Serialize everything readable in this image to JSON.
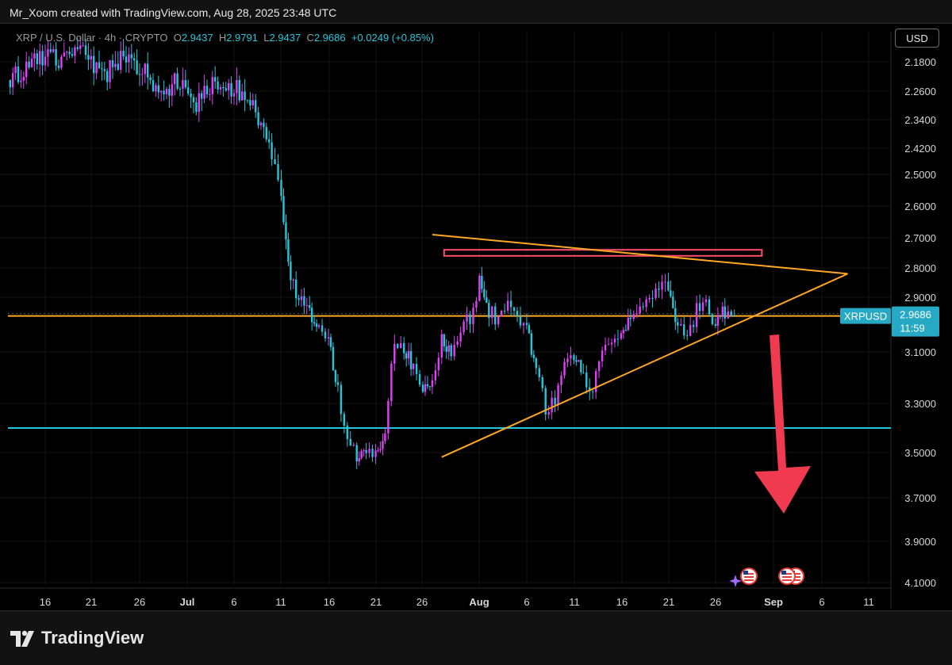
{
  "header": {
    "attribution": "Mr_Xoom created with TradingView.com, Aug 28, 2025 23:48 UTC"
  },
  "legend": {
    "symbol": "XRP / U.S. Dollar · 4h · CRYPTO",
    "o_label": "O",
    "o_value": "2.9437",
    "h_label": "H",
    "h_value": "2.9791",
    "l_label": "L",
    "l_value": "2.9437",
    "c_label": "C",
    "c_value": "2.9686",
    "change": "+0.0249 (+0.85%)"
  },
  "currency_button": "USD",
  "price_tag": {
    "symbol": "XRPUSD",
    "price": "2.9686",
    "countdown": "11:59"
  },
  "brand": "TradingView",
  "icons": [
    "us-flag-icon",
    "sparkle-icon",
    "down-arrow-icon",
    "tradingview-logo-icon"
  ],
  "colors": {
    "up": "#e040fb",
    "down": "#26c6da",
    "trendline": "#ffa726",
    "resistance_box": "#ff4d6a",
    "support_line": "#26c6da",
    "arrow": "#f03a4f"
  },
  "chart_data": {
    "type": "candlestick",
    "y_axis": {
      "orientation": "inverted",
      "tick_labels": [
        "2.1800",
        "2.2600",
        "2.3400",
        "2.4200",
        "2.5000",
        "2.6000",
        "2.7000",
        "2.8000",
        "2.9000",
        "3.1000",
        "3.3000",
        "3.5000",
        "3.7000",
        "3.9000",
        "4.1000"
      ]
    },
    "x_axis": {
      "tick_labels": [
        "16",
        "21",
        "26",
        "Jul",
        "6",
        "11",
        "16",
        "21",
        "26",
        "Aug",
        "6",
        "11",
        "16",
        "21",
        "26",
        "Sep",
        "6",
        "11"
      ]
    },
    "current_price": 2.9686,
    "series": [
      {
        "type": "close",
        "x": [
          "Jun 12",
          "Jun 14",
          "Jun 16",
          "Jun 18",
          "Jun 20",
          "Jun 22",
          "Jun 24",
          "Jun 26",
          "Jun 28",
          "Jun 30",
          "Jul 2",
          "Jul 4",
          "Jul 6",
          "Jul 8",
          "Jul 10",
          "Jul 11",
          "Jul 12",
          "Jul 14",
          "Jul 15",
          "Jul 16",
          "Jul 17",
          "Jul 18",
          "Jul 19",
          "Jul 20",
          "Jul 21",
          "Jul 22",
          "Jul 23",
          "Jul 24",
          "Jul 25",
          "Jul 26",
          "Jul 27",
          "Jul 28",
          "Jul 29",
          "Jul 30",
          "Jul 31",
          "Aug 1",
          "Aug 2",
          "Aug 3",
          "Aug 4",
          "Aug 5",
          "Aug 6",
          "Aug 7",
          "Aug 8",
          "Aug 9",
          "Aug 10",
          "Aug 11",
          "Aug 12",
          "Aug 13",
          "Aug 14",
          "Aug 15",
          "Aug 16",
          "Aug 17",
          "Aug 18",
          "Aug 19",
          "Aug 20",
          "Aug 21",
          "Aug 22",
          "Aug 23",
          "Aug 24",
          "Aug 25",
          "Aug 26",
          "Aug 27",
          "Aug 28"
        ],
        "values": [
          2.23,
          2.19,
          2.16,
          2.18,
          2.16,
          2.22,
          2.18,
          2.2,
          2.25,
          2.24,
          2.29,
          2.24,
          2.25,
          2.3,
          2.43,
          2.58,
          2.85,
          2.95,
          3.0,
          3.05,
          3.25,
          3.45,
          3.52,
          3.5,
          3.52,
          3.42,
          3.05,
          3.1,
          3.15,
          3.25,
          3.2,
          3.05,
          3.1,
          3.0,
          2.97,
          2.85,
          2.95,
          2.98,
          2.92,
          2.96,
          3.02,
          3.15,
          3.32,
          3.28,
          3.15,
          3.12,
          3.2,
          3.25,
          3.1,
          3.05,
          3.02,
          2.98,
          2.95,
          2.9,
          2.85,
          2.88,
          3.0,
          3.05,
          2.95,
          2.92,
          3.0,
          2.95,
          2.9686
        ]
      }
    ],
    "annotations": {
      "resistance_zone": {
        "y_top": 2.74,
        "y_bottom": 2.76,
        "x_start": "Jul 28",
        "x_end": "Sep 1"
      },
      "descending_trendline": {
        "from": {
          "x": "Jul 27",
          "y": 2.69
        },
        "to": {
          "x": "Sep 9",
          "y": 2.82
        }
      },
      "ascending_trendline": {
        "from": {
          "x": "Jul 28",
          "y": 3.52
        },
        "to": {
          "x": "Sep 9",
          "y": 2.82
        }
      },
      "support_line": {
        "y": 3.4
      },
      "current_price_line": {
        "y": 2.9686
      }
    }
  }
}
